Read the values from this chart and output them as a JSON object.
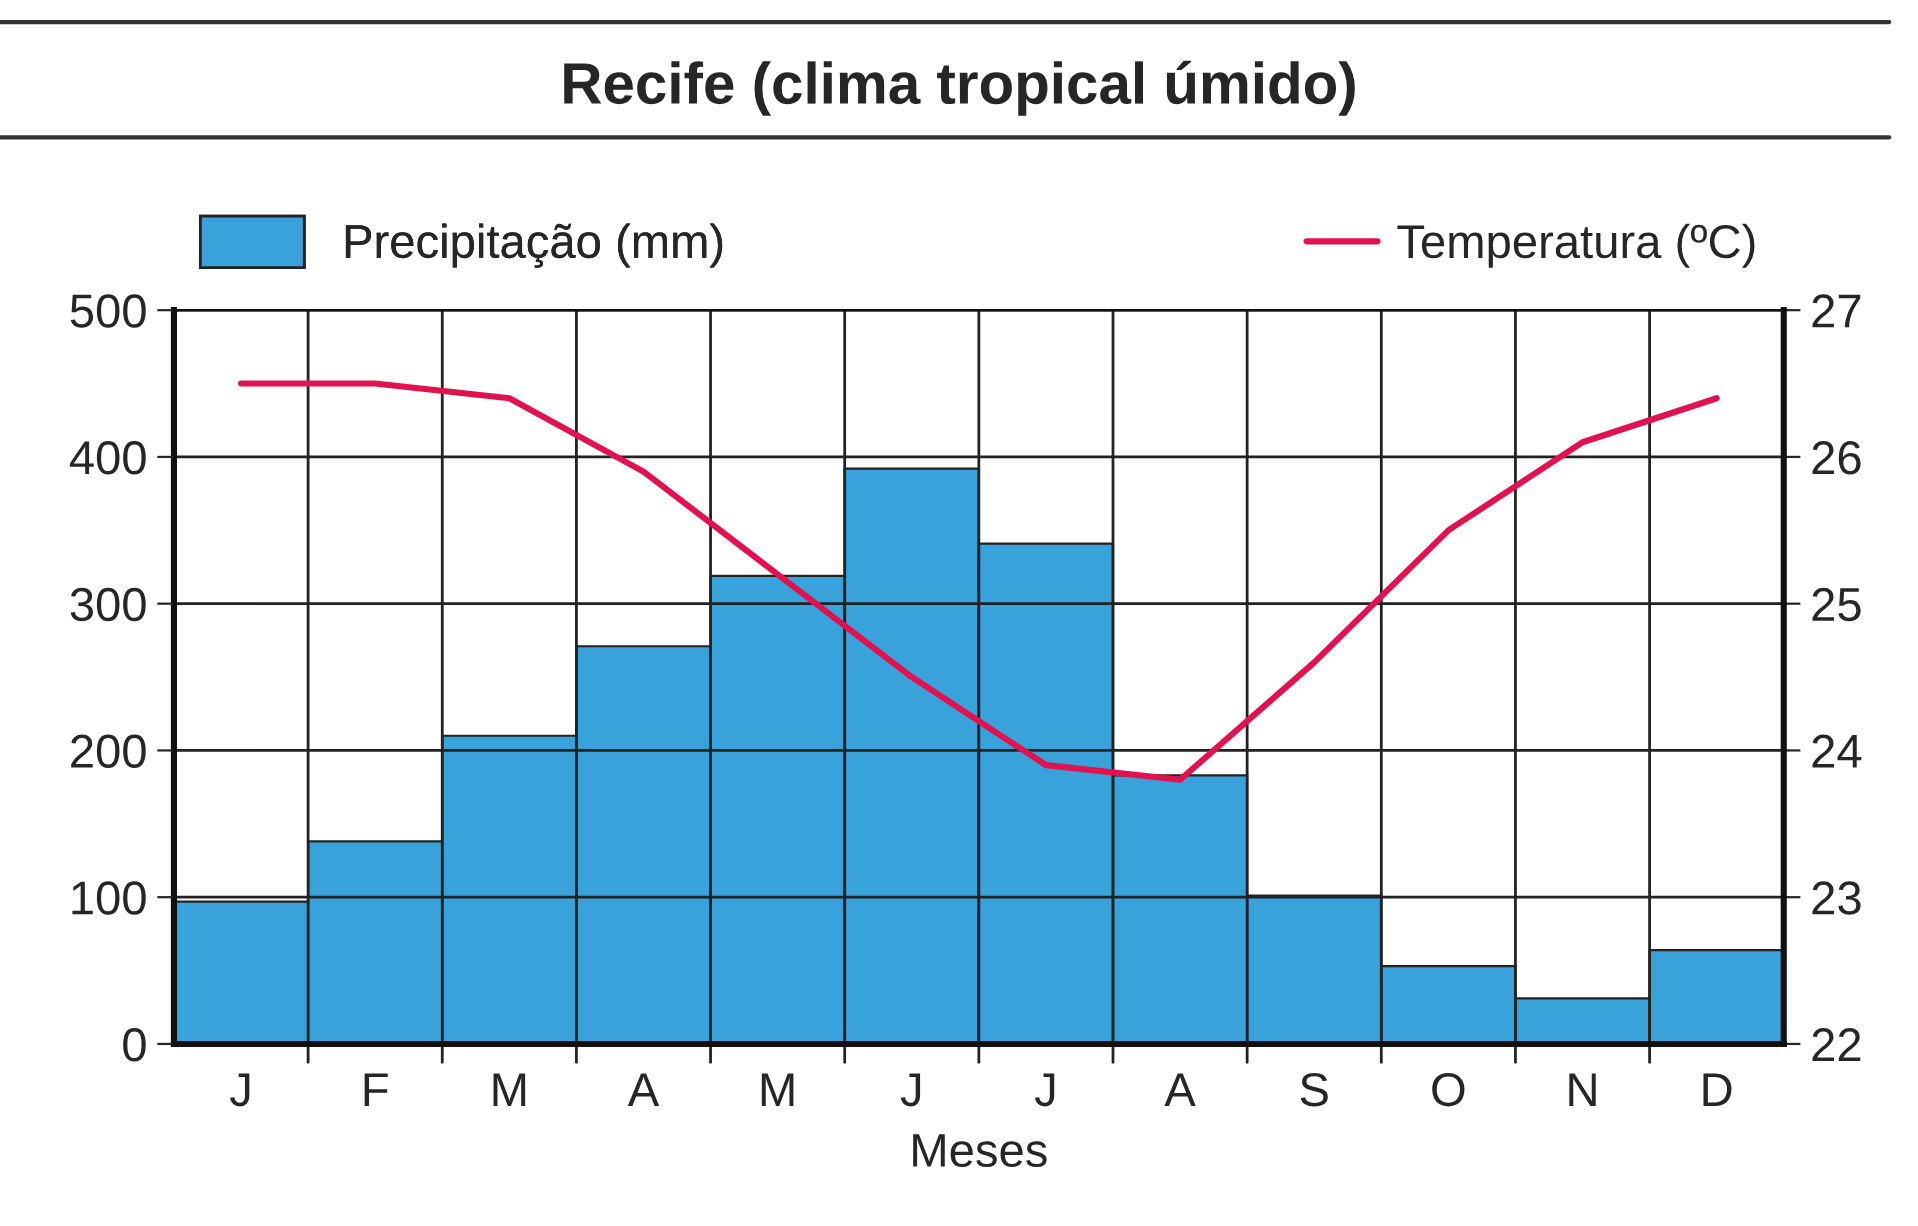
{
  "chart_data": {
    "type": "bar",
    "title": "Recife (clima tropical úmido)",
    "xlabel": "Meses",
    "categories": [
      "J",
      "F",
      "M",
      "A",
      "M",
      "J",
      "J",
      "A",
      "S",
      "O",
      "N",
      "D"
    ],
    "series": [
      {
        "name": "Precipitação (mm)",
        "color": "#39a2da",
        "values": [
          97,
          138,
          210,
          271,
          319,
          392,
          341,
          183,
          101,
          53,
          31,
          64
        ]
      },
      {
        "name": "Temperatura (ºC)",
        "type": "line",
        "axis": "y2",
        "color": "#e0124f",
        "values": [
          26.5,
          26.5,
          26.4,
          25.9,
          25.2,
          24.5,
          23.9,
          23.8,
          24.6,
          25.5,
          26.1,
          26.4
        ]
      }
    ],
    "ylim": [
      0,
      500
    ],
    "yticks": [
      0,
      100,
      200,
      300,
      400,
      500
    ],
    "y2lim": [
      22,
      27
    ],
    "y2ticks": [
      22,
      23,
      24,
      25,
      26,
      27
    ],
    "grid": true,
    "legend": "top",
    "marker": "none",
    "line_style": "solid"
  }
}
